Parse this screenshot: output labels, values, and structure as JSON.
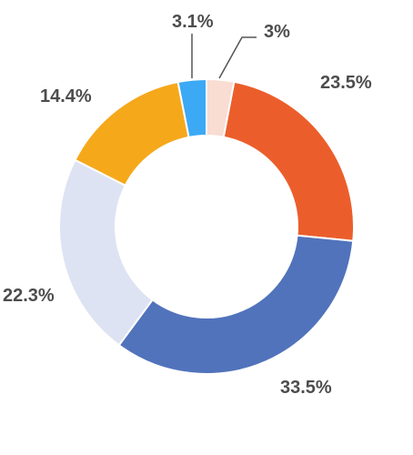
{
  "chart_data": {
    "type": "pie",
    "donut": true,
    "title": "",
    "slices": [
      {
        "label": "3%",
        "value": 3.0,
        "color": "#f9dcd2"
      },
      {
        "label": "23.5%",
        "value": 23.5,
        "color": "#eb5e2b"
      },
      {
        "label": "33.5%",
        "value": 33.5,
        "color": "#5173bb"
      },
      {
        "label": "22.3%",
        "value": 22.3,
        "color": "#dde3f2"
      },
      {
        "label": "14.4%",
        "value": 14.4,
        "color": "#f6a81b"
      },
      {
        "label": "3.1%",
        "value": 3.1,
        "color": "#3ca9f5"
      }
    ]
  }
}
